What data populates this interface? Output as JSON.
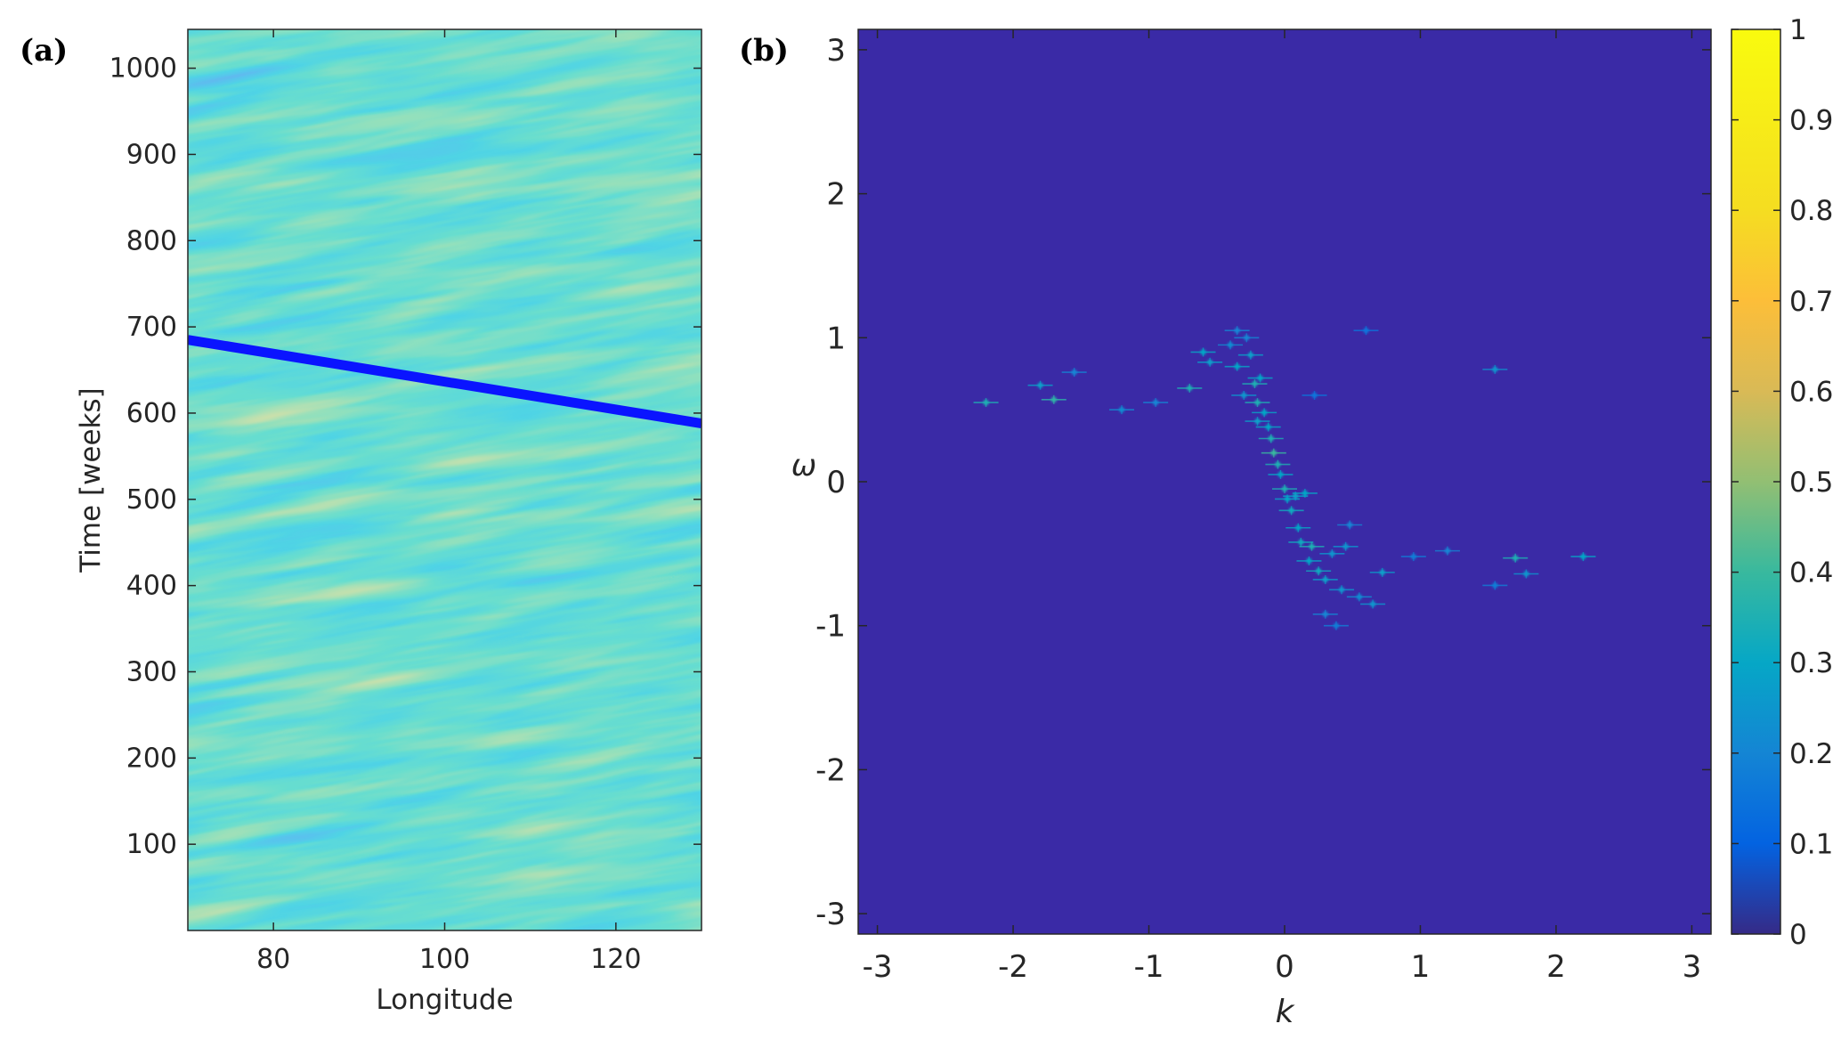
{
  "chart_data": [
    {
      "type": "heatmap",
      "panel_label": "(a)",
      "xlabel": "Longitude",
      "ylabel": "Time [weeks]",
      "xlim": [
        70,
        130
      ],
      "ylim": [
        0,
        1045
      ],
      "xticks": [
        80,
        100,
        120
      ],
      "xtick_labels": [
        "80",
        "100",
        "120"
      ],
      "yticks": [
        100,
        200,
        300,
        400,
        500,
        600,
        700,
        800,
        900,
        1000
      ],
      "ytick_labels": [
        "100",
        "200",
        "300",
        "400",
        "500",
        "600",
        "700",
        "800",
        "900",
        "1000"
      ],
      "colormap": "parula",
      "overlay_line": {
        "x": [
          70,
          130
        ],
        "y": [
          685,
          588
        ],
        "color": "#0a14ff"
      }
    },
    {
      "type": "heatmap",
      "panel_label": "(b)",
      "xlabel": "k",
      "ylabel": "ω",
      "xlim": [
        -3.14159,
        3.14159
      ],
      "ylim": [
        -3.14159,
        3.14159
      ],
      "xticks": [
        -3,
        -2,
        -1,
        0,
        1,
        2,
        3
      ],
      "xtick_labels": [
        "-3",
        "-2",
        "-1",
        "0",
        "1",
        "2",
        "3"
      ],
      "yticks": [
        -3,
        -2,
        -1,
        0,
        1,
        2,
        3
      ],
      "ytick_labels": [
        "-3",
        "-2",
        "-1",
        "0",
        "1",
        "2",
        "3"
      ],
      "colormap": "parula",
      "background_value": 0,
      "peaks": [
        {
          "k": -2.2,
          "w": 0.55,
          "v": 0.35
        },
        {
          "k": -1.7,
          "w": 0.57,
          "v": 0.38
        },
        {
          "k": -1.8,
          "w": 0.67,
          "v": 0.28
        },
        {
          "k": -1.55,
          "w": 0.76,
          "v": 0.2
        },
        {
          "k": -1.2,
          "w": 0.5,
          "v": 0.22
        },
        {
          "k": -0.95,
          "w": 0.55,
          "v": 0.2
        },
        {
          "k": -0.7,
          "w": 0.65,
          "v": 0.35
        },
        {
          "k": -0.6,
          "w": 0.9,
          "v": 0.3
        },
        {
          "k": -0.55,
          "w": 0.83,
          "v": 0.28
        },
        {
          "k": -0.4,
          "w": 0.95,
          "v": 0.22
        },
        {
          "k": -0.35,
          "w": 0.8,
          "v": 0.3
        },
        {
          "k": -0.3,
          "w": 0.6,
          "v": 0.25
        },
        {
          "k": -0.25,
          "w": 0.88,
          "v": 0.28
        },
        {
          "k": -0.22,
          "w": 0.68,
          "v": 0.35
        },
        {
          "k": -0.18,
          "w": 0.72,
          "v": 0.3
        },
        {
          "k": -0.2,
          "w": 0.55,
          "v": 0.35
        },
        {
          "k": -0.15,
          "w": 0.48,
          "v": 0.3
        },
        {
          "k": -0.2,
          "w": 0.42,
          "v": 0.28
        },
        {
          "k": -0.12,
          "w": 0.38,
          "v": 0.3
        },
        {
          "k": -0.1,
          "w": 0.3,
          "v": 0.35
        },
        {
          "k": -0.08,
          "w": 0.2,
          "v": 0.4
        },
        {
          "k": -0.05,
          "w": 0.12,
          "v": 0.35
        },
        {
          "k": -0.03,
          "w": 0.05,
          "v": 0.3
        },
        {
          "k": 0.0,
          "w": -0.05,
          "v": 0.35
        },
        {
          "k": 0.02,
          "w": -0.12,
          "v": 0.3
        },
        {
          "k": 0.05,
          "w": -0.2,
          "v": 0.32
        },
        {
          "k": 0.08,
          "w": -0.1,
          "v": 0.28
        },
        {
          "k": 0.1,
          "w": -0.32,
          "v": 0.3
        },
        {
          "k": 0.15,
          "w": -0.08,
          "v": 0.3
        },
        {
          "k": 0.12,
          "w": -0.42,
          "v": 0.32
        },
        {
          "k": 0.2,
          "w": -0.45,
          "v": 0.35
        },
        {
          "k": 0.18,
          "w": -0.55,
          "v": 0.3
        },
        {
          "k": 0.25,
          "w": -0.62,
          "v": 0.32
        },
        {
          "k": 0.3,
          "w": -0.68,
          "v": 0.28
        },
        {
          "k": 0.35,
          "w": -0.5,
          "v": 0.25
        },
        {
          "k": 0.42,
          "w": -0.75,
          "v": 0.25
        },
        {
          "k": 0.45,
          "w": -0.45,
          "v": 0.25
        },
        {
          "k": 0.55,
          "w": -0.8,
          "v": 0.22
        },
        {
          "k": 0.65,
          "w": -0.85,
          "v": 0.25
        },
        {
          "k": 0.72,
          "w": -0.63,
          "v": 0.28
        },
        {
          "k": 0.3,
          "w": -0.92,
          "v": 0.2
        },
        {
          "k": 0.38,
          "w": -1.0,
          "v": 0.18
        },
        {
          "k": 0.48,
          "w": -0.3,
          "v": 0.2
        },
        {
          "k": 1.2,
          "w": -0.48,
          "v": 0.2
        },
        {
          "k": 0.95,
          "w": -0.52,
          "v": 0.18
        },
        {
          "k": 1.7,
          "w": -0.53,
          "v": 0.35
        },
        {
          "k": 2.2,
          "w": -0.52,
          "v": 0.3
        },
        {
          "k": 1.78,
          "w": -0.64,
          "v": 0.25
        },
        {
          "k": 1.55,
          "w": 0.78,
          "v": 0.25
        },
        {
          "k": 1.55,
          "w": -0.72,
          "v": 0.18
        },
        {
          "k": 0.6,
          "w": 1.05,
          "v": 0.15
        },
        {
          "k": -0.35,
          "w": 1.05,
          "v": 0.2
        },
        {
          "k": -0.28,
          "w": 1.0,
          "v": 0.2
        },
        {
          "k": 0.22,
          "w": 0.6,
          "v": 0.15
        }
      ]
    }
  ],
  "colorbar": {
    "ticks": [
      0,
      0.1,
      0.2,
      0.3,
      0.4,
      0.5,
      0.6,
      0.7,
      0.8,
      0.9,
      1
    ],
    "tick_labels": [
      "0",
      "0.1",
      "0.2",
      "0.3",
      "0.4",
      "0.5",
      "0.6",
      "0.7",
      "0.8",
      "0.9",
      "1"
    ],
    "range": [
      0,
      1
    ],
    "colormap": "parula"
  }
}
